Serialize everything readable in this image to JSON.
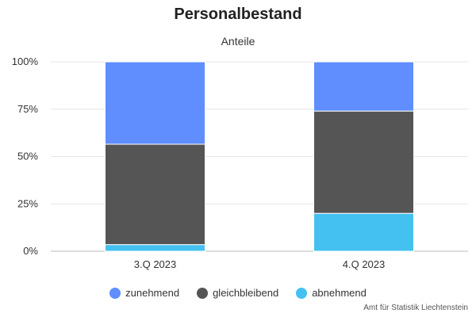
{
  "chart_data": {
    "type": "bar",
    "stacked": true,
    "title": "Personalbestand",
    "subtitle": "Anteile",
    "categories": [
      "3.Q 2023",
      "4.Q 2023"
    ],
    "series": [
      {
        "name": "abnehmend",
        "values": [
          3.5,
          20
        ],
        "color": "#44C1F0"
      },
      {
        "name": "gleichbleibend",
        "values": [
          53,
          54
        ],
        "color": "#555555"
      },
      {
        "name": "zunehmend",
        "values": [
          43.5,
          26
        ],
        "color": "#608EFF"
      }
    ],
    "y_ticks": [
      "0%",
      "25%",
      "50%",
      "75%",
      "100%"
    ],
    "ylim": [
      0,
      100
    ],
    "grid": true,
    "legend_position": "bottom",
    "legend_order": [
      "zunehmend",
      "gleichbleibend",
      "abnehmend"
    ]
  },
  "credit": "Amt für Statistik Liechtenstein"
}
